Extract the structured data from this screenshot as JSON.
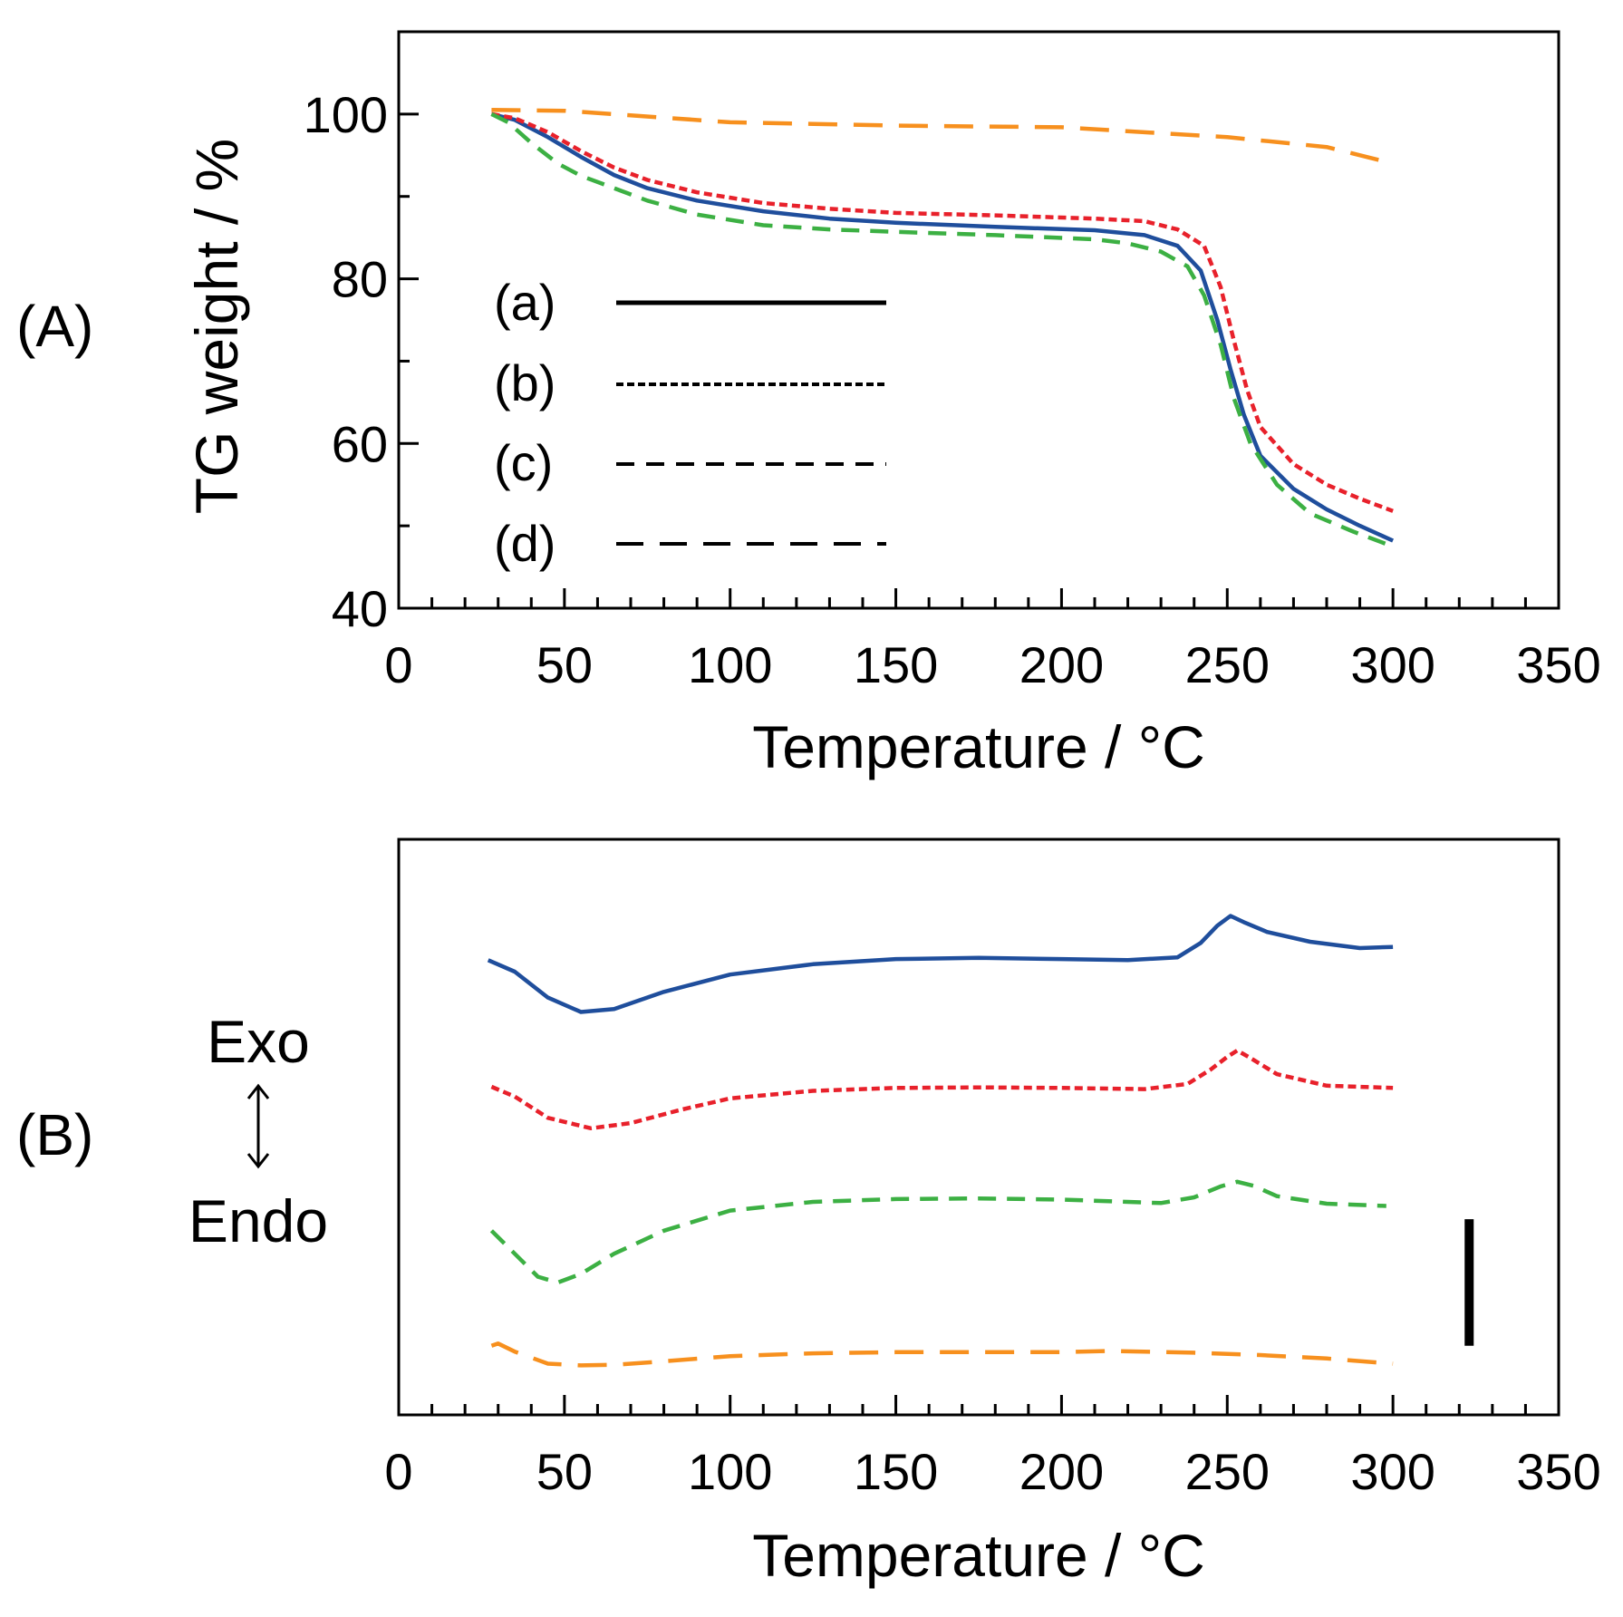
{
  "chart_data": [
    {
      "panel": "(A)",
      "type": "line",
      "xlabel": "Temperature / °C",
      "ylabel": "TG weight / %",
      "xlim": [
        0,
        350
      ],
      "ylim": [
        40,
        110
      ],
      "xticks": [
        0,
        50,
        100,
        150,
        200,
        250,
        300,
        350
      ],
      "yticks": [
        40,
        60,
        80,
        100
      ],
      "legend": {
        "placement": "center-left",
        "entries": [
          "(a)",
          "(b)",
          "(c)",
          "(d)"
        ]
      },
      "series": [
        {
          "name": "(a)",
          "color": "#1f4e9c",
          "dash": "solid",
          "x": [
            28,
            35,
            45,
            55,
            65,
            75,
            90,
            110,
            130,
            150,
            180,
            210,
            225,
            235,
            242,
            247,
            251,
            255,
            260,
            270,
            280,
            290,
            300
          ],
          "y": [
            100,
            99.3,
            97.2,
            94.8,
            92.6,
            91,
            89.5,
            88.2,
            87.3,
            86.8,
            86.3,
            85.9,
            85.3,
            84,
            81,
            75,
            69,
            63.5,
            58.5,
            54.5,
            52,
            50,
            48.2
          ]
        },
        {
          "name": "(b)",
          "color": "#e8212b",
          "dash": "short",
          "x": [
            28,
            35,
            45,
            55,
            65,
            75,
            90,
            110,
            130,
            150,
            180,
            210,
            225,
            235,
            243,
            248,
            252,
            256,
            260,
            270,
            280,
            290,
            300
          ],
          "y": [
            100,
            99.5,
            97.8,
            95.5,
            93.5,
            92,
            90.5,
            89.2,
            88.5,
            88,
            87.7,
            87.3,
            87,
            86,
            84,
            79,
            72.5,
            66.5,
            62,
            57.5,
            55,
            53.3,
            51.8
          ]
        },
        {
          "name": "(c)",
          "color": "#3cb043",
          "dash": "medium",
          "x": [
            28,
            33,
            40,
            48,
            55,
            65,
            75,
            90,
            110,
            130,
            150,
            180,
            210,
            220,
            230,
            238,
            243,
            248,
            252,
            257,
            265,
            275,
            288,
            300
          ],
          "y": [
            100,
            99,
            96.5,
            94,
            92.5,
            91,
            89.5,
            87.8,
            86.5,
            86,
            85.7,
            85.3,
            84.8,
            84.3,
            83.3,
            81.5,
            78,
            72,
            65.5,
            60,
            55,
            51.5,
            49.3,
            47.5
          ]
        },
        {
          "name": "(d)",
          "color": "#f7901e",
          "dash": "long",
          "x": [
            28,
            50,
            100,
            150,
            200,
            250,
            280,
            300
          ],
          "y": [
            100.5,
            100.4,
            99,
            98.6,
            98.4,
            97.2,
            96,
            94
          ]
        }
      ]
    },
    {
      "panel": "(B)",
      "type": "line",
      "xlabel": "Temperature / °C",
      "ylabel": "",
      "xlim": [
        0,
        350
      ],
      "xticks": [
        0,
        50,
        100,
        150,
        200,
        250,
        300,
        350
      ],
      "side_labels": {
        "top": "Exo",
        "arrow": "↕",
        "bottom": "Endo"
      },
      "y_range_units": [
        0,
        100
      ],
      "scale_bar": {
        "x": 323,
        "y_from": 12,
        "y_to": 34
      },
      "series": [
        {
          "name": "(a)",
          "color": "#1f4e9c",
          "dash": "solid",
          "x": [
            27,
            35,
            45,
            55,
            65,
            80,
            100,
            125,
            150,
            175,
            200,
            220,
            235,
            242,
            247,
            251,
            255,
            262,
            275,
            290,
            300
          ],
          "y": [
            79,
            77,
            72.5,
            70,
            70.5,
            73.5,
            76.5,
            78.3,
            79.2,
            79.4,
            79.2,
            79.0,
            79.5,
            82,
            85,
            86.7,
            85.6,
            83.9,
            82.2,
            81.1,
            81.3
          ]
        },
        {
          "name": "(b)",
          "color": "#e8212b",
          "dash": "short",
          "x": [
            28,
            35,
            45,
            58,
            70,
            85,
            100,
            125,
            150,
            175,
            200,
            225,
            238,
            245,
            250,
            253,
            257,
            265,
            280,
            300
          ],
          "y": [
            57,
            55.3,
            51.6,
            49.8,
            50.7,
            53,
            55,
            56.3,
            56.8,
            56.9,
            56.8,
            56.6,
            57.5,
            60,
            62.2,
            63.3,
            62,
            59.2,
            57.2,
            56.8
          ]
        },
        {
          "name": "(c)",
          "color": "#3cb043",
          "dash": "medium",
          "x": [
            28,
            35,
            42,
            48,
            55,
            65,
            80,
            100,
            125,
            150,
            175,
            200,
            220,
            230,
            240,
            248,
            253,
            258,
            265,
            280,
            298
          ],
          "y": [
            32,
            28,
            24,
            23,
            24.5,
            28,
            32,
            35.5,
            37,
            37.5,
            37.6,
            37.4,
            37,
            36.8,
            37.8,
            39.7,
            40.5,
            39.8,
            38,
            36.7,
            36.3
          ]
        },
        {
          "name": "(d)",
          "color": "#f7901e",
          "dash": "long",
          "x": [
            28,
            30,
            35,
            45,
            55,
            65,
            80,
            100,
            125,
            150,
            200,
            215,
            240,
            260,
            280,
            300
          ],
          "y": [
            12,
            12.4,
            11,
            8.9,
            8.6,
            8.7,
            9.3,
            10.2,
            10.7,
            10.9,
            10.9,
            11.1,
            10.8,
            10.4,
            9.8,
            8.9
          ]
        }
      ]
    }
  ]
}
